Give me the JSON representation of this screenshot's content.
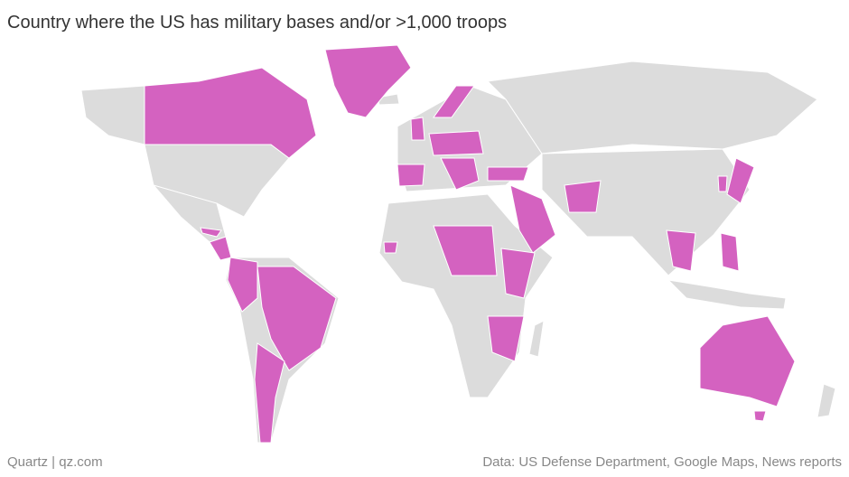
{
  "header": {
    "title": "Country where the US has military bases and/or >1,000 troops"
  },
  "footer": {
    "source_left": "Quartz | qz.com",
    "source_right": "Data: US Defense Department, Google Maps, News reports"
  }
}
